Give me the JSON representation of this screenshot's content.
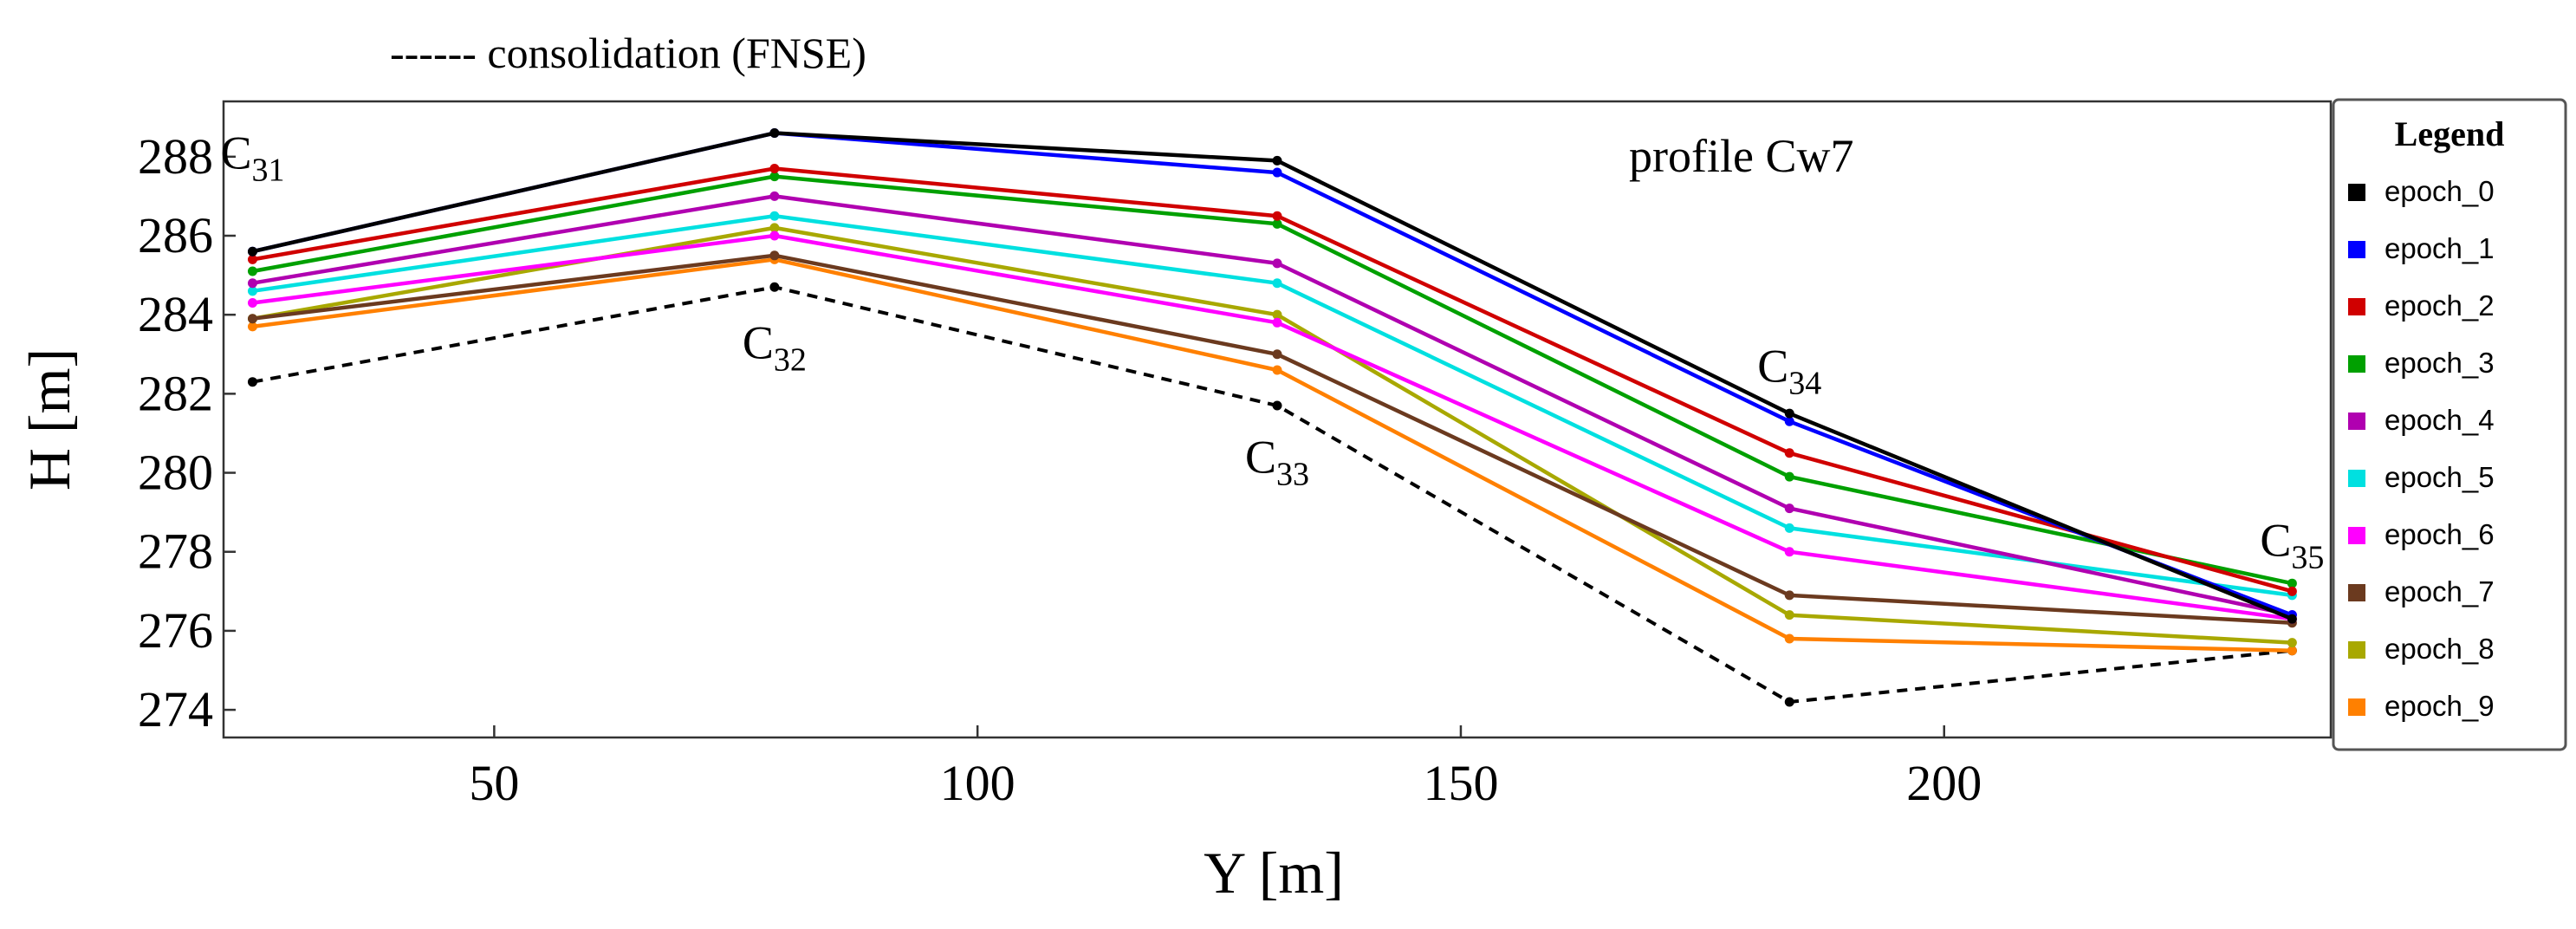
{
  "chart_data": {
    "type": "line",
    "title": "",
    "annotation_top": "------ consolidation (FNSE)",
    "profile_label": "profile Cw7",
    "xlabel": "Y [m]",
    "ylabel": "H [m]",
    "xlim": [
      22,
      240
    ],
    "ylim": [
      273.3,
      289.4
    ],
    "x_ticks": [
      50,
      100,
      150,
      200
    ],
    "y_ticks": [
      274,
      276,
      278,
      280,
      282,
      284,
      286,
      288
    ],
    "x": [
      25,
      79,
      131,
      184,
      236
    ],
    "point_labels": [
      {
        "name": "C",
        "sub": "31",
        "x": 25,
        "y": 287.7
      },
      {
        "name": "C",
        "sub": "32",
        "x": 79,
        "y": 282.9
      },
      {
        "name": "C",
        "sub": "33",
        "x": 131,
        "y": 280.0
      },
      {
        "name": "C",
        "sub": "34",
        "x": 184,
        "y": 282.3
      },
      {
        "name": "C",
        "sub": "35",
        "x": 236,
        "y": 277.9
      }
    ],
    "legend_title": "Legend",
    "series": [
      {
        "name": "epoch_0",
        "color": "#000000",
        "values": [
          285.6,
          288.6,
          287.9,
          281.5,
          276.3
        ]
      },
      {
        "name": "epoch_1",
        "color": "#0000ff",
        "values": [
          285.6,
          288.6,
          287.6,
          281.3,
          276.4
        ]
      },
      {
        "name": "epoch_2",
        "color": "#d00000",
        "values": [
          285.4,
          287.7,
          286.5,
          280.5,
          277.0
        ]
      },
      {
        "name": "epoch_3",
        "color": "#00a000",
        "values": [
          285.1,
          287.5,
          286.3,
          279.9,
          277.2
        ]
      },
      {
        "name": "epoch_4",
        "color": "#b000b0",
        "values": [
          284.8,
          287.0,
          285.3,
          279.1,
          276.4
        ]
      },
      {
        "name": "epoch_5",
        "color": "#00e0e0",
        "values": [
          284.6,
          286.5,
          284.8,
          278.6,
          276.9
        ]
      },
      {
        "name": "epoch_6",
        "color": "#ff00ff",
        "values": [
          284.3,
          286.0,
          283.8,
          278.0,
          276.3
        ]
      },
      {
        "name": "epoch_7",
        "color": "#6b3a1f",
        "values": [
          283.9,
          285.5,
          283.0,
          276.9,
          276.2
        ]
      },
      {
        "name": "epoch_8",
        "color": "#a8a800",
        "values": [
          283.9,
          286.2,
          284.0,
          276.4,
          275.7
        ]
      },
      {
        "name": "epoch_9",
        "color": "#ff8000",
        "values": [
          283.7,
          285.4,
          282.6,
          275.8,
          275.5
        ]
      }
    ],
    "consolidation": {
      "name": "consolidation (FNSE)",
      "color": "#000000",
      "values": [
        282.3,
        284.7,
        281.7,
        274.2,
        275.5
      ]
    }
  }
}
